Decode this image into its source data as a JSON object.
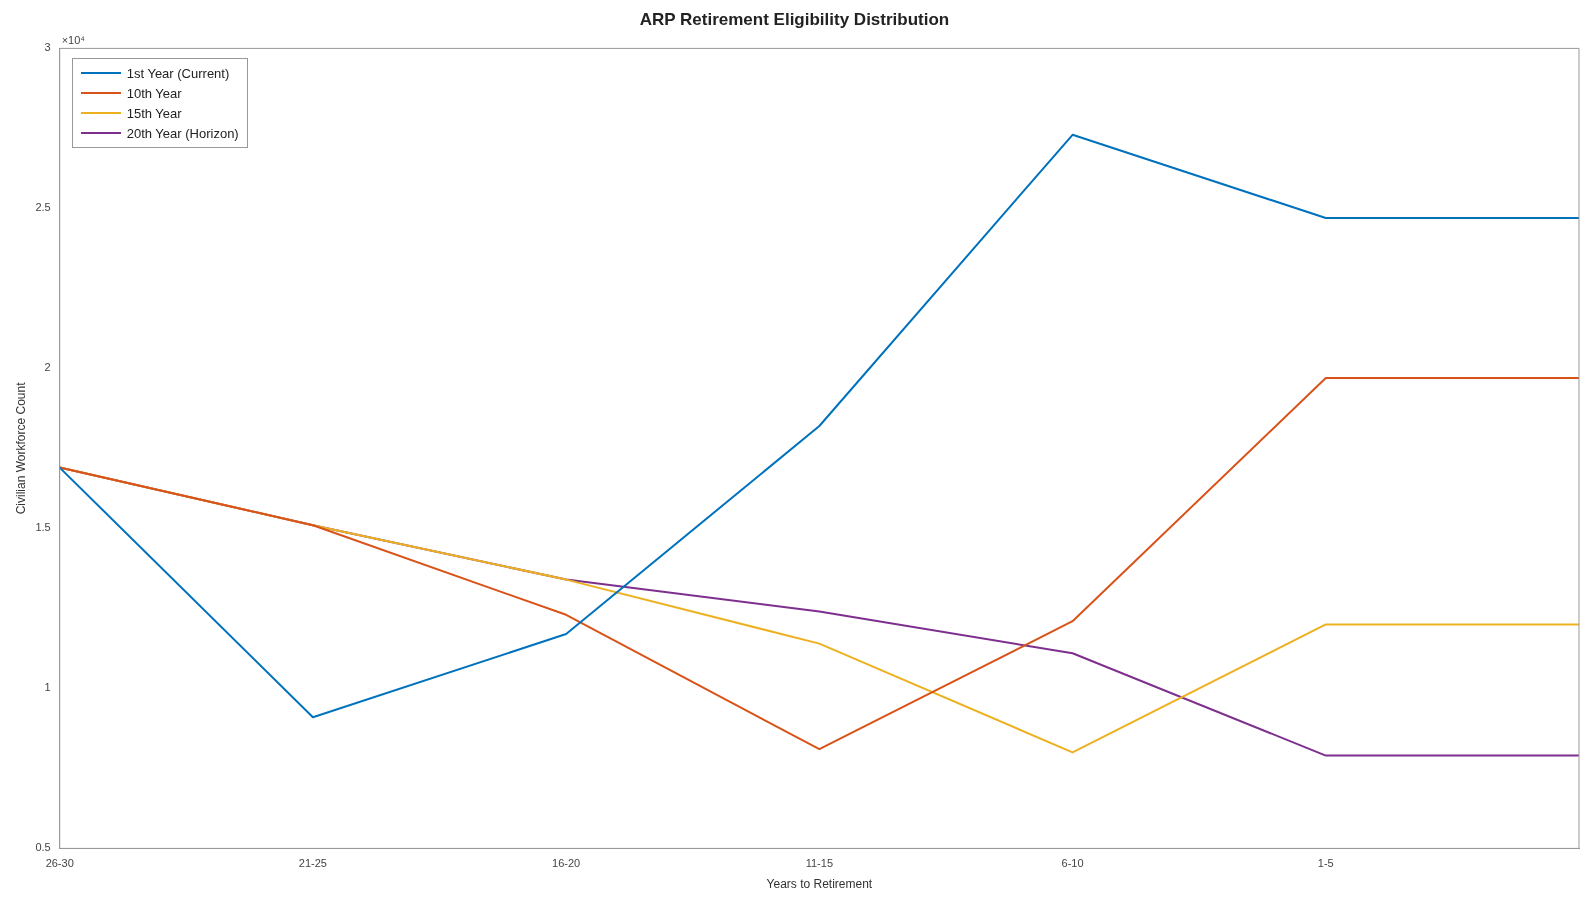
{
  "chart_data": {
    "type": "line",
    "title": "ARP Retirement Eligibility Distribution",
    "xlabel": "Years to Retirement",
    "ylabel": "Civilian Workforce Count",
    "categories": [
      "26-30",
      "21-25",
      "16-20",
      "11-15",
      "6-10",
      "1-5",
      null
    ],
    "series": [
      {
        "name": "1st Year (Current)",
        "color": "#0072bd",
        "values": [
          1.69,
          0.91,
          1.17,
          1.82,
          2.73,
          2.47,
          2.47
        ]
      },
      {
        "name": "10th Year",
        "color": "#d95319",
        "values": [
          1.69,
          1.51,
          1.23,
          0.81,
          1.21,
          1.97,
          1.97
        ]
      },
      {
        "name": "15th Year",
        "color": "#edb120",
        "values": [
          1.69,
          1.51,
          1.34,
          1.14,
          0.8,
          1.2,
          1.2
        ]
      },
      {
        "name": "20th Year (Horizon)",
        "color": "#7e2f8e",
        "values": [
          1.69,
          1.51,
          1.34,
          1.24,
          1.11,
          0.79,
          0.79
        ]
      }
    ],
    "ylim": [
      0.5,
      3
    ],
    "yticks": [
      0.5,
      1,
      1.5,
      2,
      2.5,
      3
    ],
    "annotations": [
      "×10⁴"
    ],
    "legend": "top left",
    "grid": false,
    "marker": "none",
    "line_style": "solid"
  }
}
